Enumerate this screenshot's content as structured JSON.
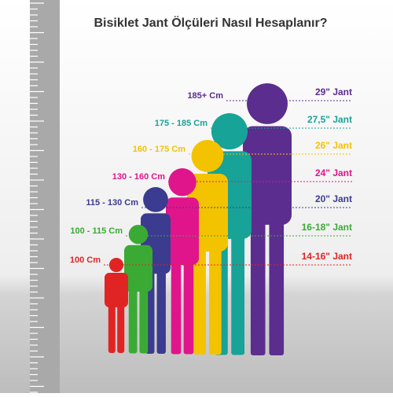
{
  "title": "Bisiklet Jant Ölçüleri Nasıl Hesaplanır?",
  "rows": [
    {
      "height": "185+ Cm",
      "wheel": "29\" Jant",
      "color": "#5b2d8e"
    },
    {
      "height": "175 - 185 Cm",
      "wheel": "27,5\" Jant",
      "color": "#17a398"
    },
    {
      "height": "160 - 175 Cm",
      "wheel": "26\" Jant",
      "color": "#f3c300"
    },
    {
      "height": "130 - 160 Cm",
      "wheel": "24\" Jant",
      "color": "#e0158c"
    },
    {
      "height": "115 - 130 Cm",
      "wheel": "20\" Jant",
      "color": "#3b3b8f"
    },
    {
      "height": "100 - 115 Cm",
      "wheel": "16-18\" Jant",
      "color": "#3aaa35"
    },
    {
      "height": "100 Cm",
      "wheel": "14-16\" Jant",
      "color": "#e02424"
    }
  ]
}
